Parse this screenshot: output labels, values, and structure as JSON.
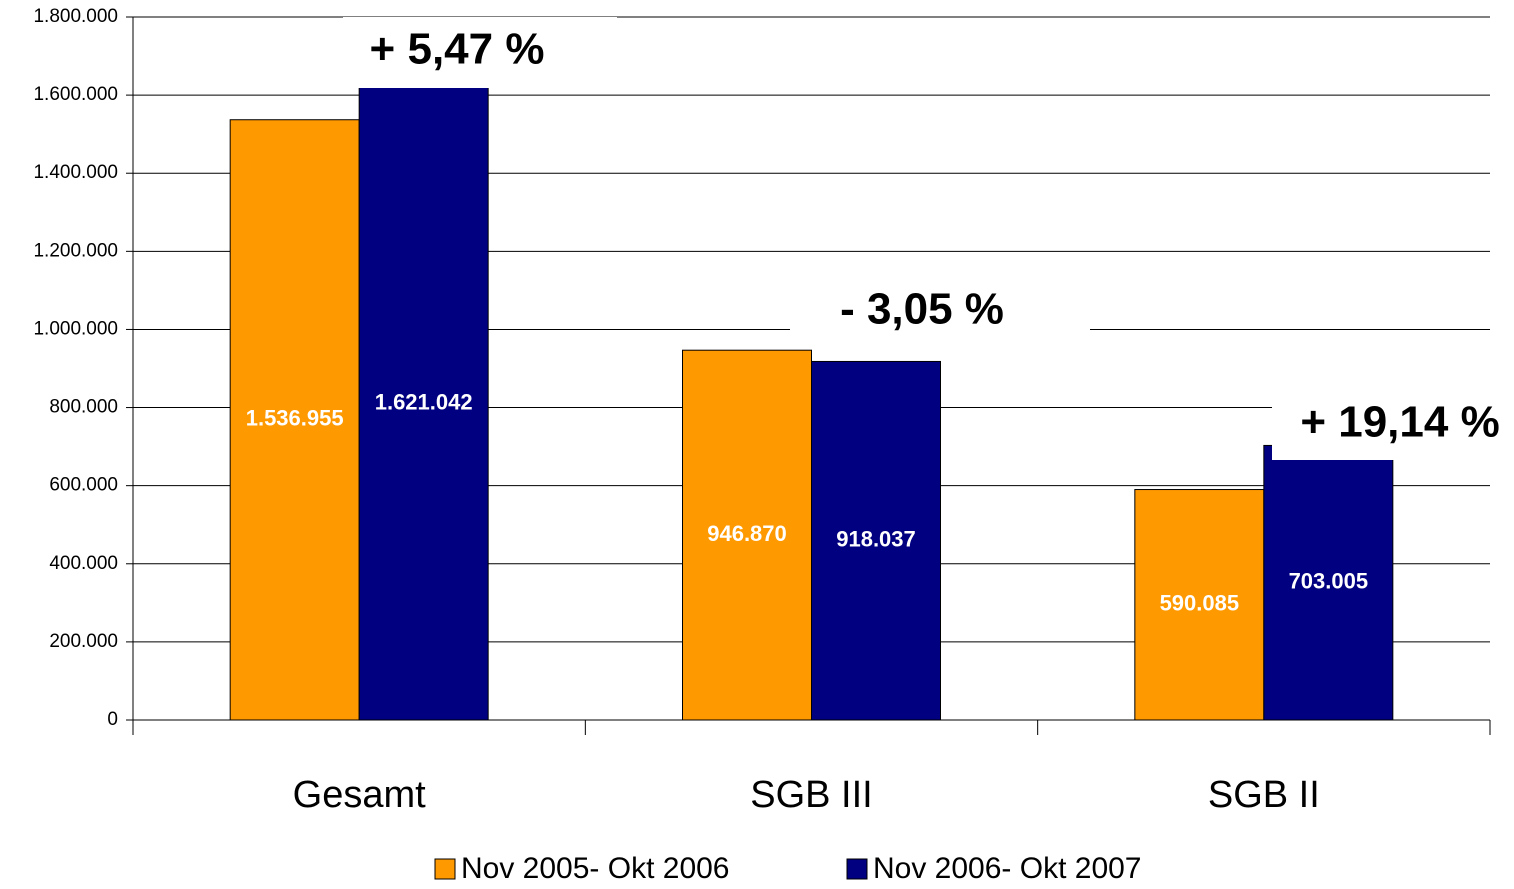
{
  "chart_data": {
    "type": "bar",
    "categories": [
      "Gesamt",
      "SGB III",
      "SGB II"
    ],
    "series": [
      {
        "name": "Nov 2005- Okt 2006",
        "color": "#ff9900",
        "values": [
          1536955,
          946870,
          590085
        ],
        "value_labels": [
          "1.536.955",
          "946.870",
          "590.085"
        ]
      },
      {
        "name": "Nov 2006- Okt 2007",
        "color": "#000080",
        "values": [
          1621042,
          918037,
          703005
        ],
        "value_labels": [
          "1.621.042",
          "918.037",
          "703.005"
        ]
      }
    ],
    "annotations": [
      "+ 5,47 %",
      "- 3,05 %",
      "+ 19,14 %"
    ],
    "ylim": [
      0,
      1800000
    ],
    "yticks": [
      0,
      {
        "value": 200000,
        "label": "200.000"
      },
      {
        "value": 400000,
        "label": "400.000"
      },
      {
        "value": 600000,
        "label": "600.000"
      },
      {
        "value": 800000,
        "label": "800.000"
      },
      {
        "value": 1000000,
        "label": "1.000.000"
      },
      {
        "value": 1200000,
        "label": "1.200.000"
      },
      {
        "value": 1400000,
        "label": "1.400.000"
      },
      {
        "value": 1600000,
        "label": "1.600.000"
      },
      {
        "value": 1800000,
        "label": "1.800.000"
      }
    ],
    "grid": true,
    "legend": "bottom"
  }
}
